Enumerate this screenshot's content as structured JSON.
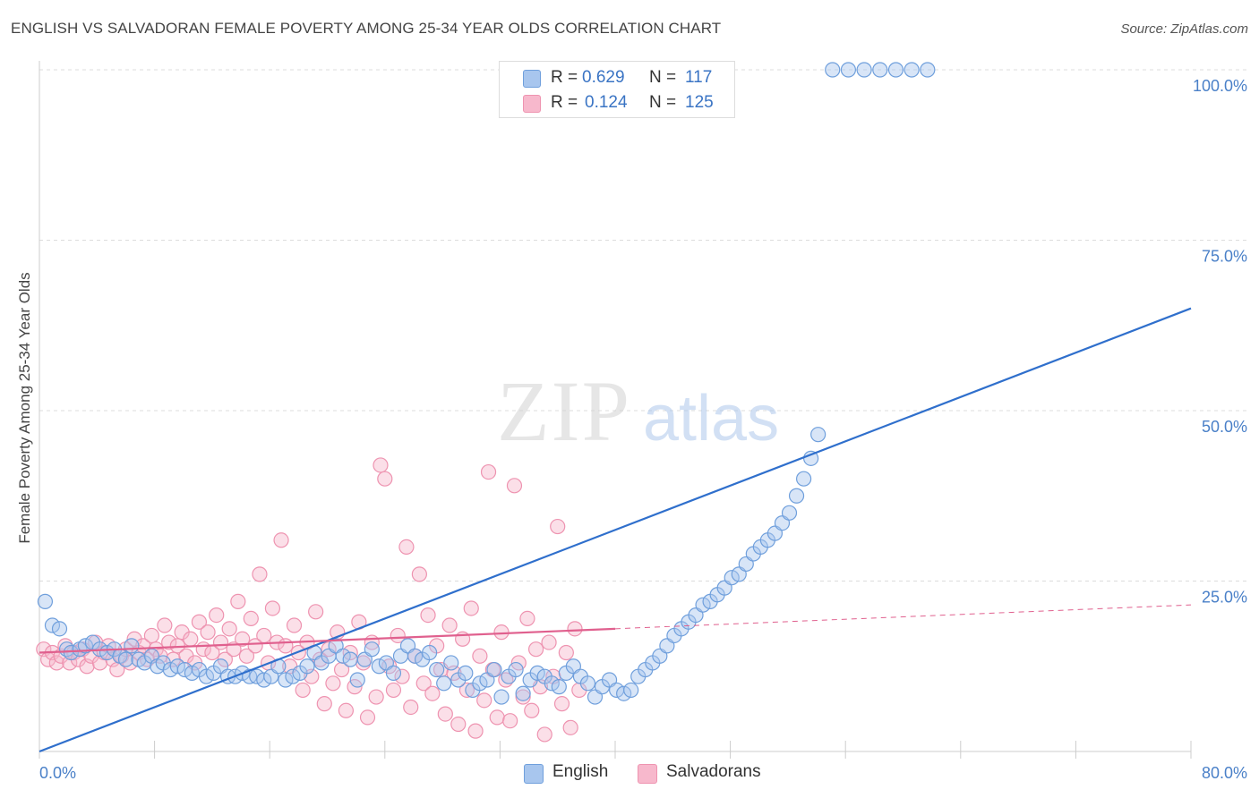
{
  "header": {
    "title": "ENGLISH VS SALVADORAN FEMALE POVERTY AMONG 25-34 YEAR OLDS CORRELATION CHART",
    "source": "Source: ZipAtlas.com"
  },
  "legend_top": {
    "rows": [
      {
        "r_label": "R =",
        "r_value": "0.629",
        "n_label": "N =",
        "n_value": "117"
      },
      {
        "r_label": "R =",
        "r_value": "0.124",
        "n_label": "N =",
        "n_value": "125"
      }
    ]
  },
  "legend_bottom": {
    "english": "English",
    "salvadorans": "Salvadorans"
  },
  "watermark": {
    "zip": "ZIP",
    "atlas": "atlas"
  },
  "colors": {
    "english_fill": "#a8c6ee",
    "english_stroke": "#6f9fdc",
    "english_line": "#2f6fcc",
    "salvadoran_fill": "#f7b8cc",
    "salvadoran_stroke": "#ee93b0",
    "salvadoran_line": "#e0608e",
    "grid": "#dcdcdc",
    "tick_text": "#4a80c8"
  },
  "chart_data": {
    "type": "scatter",
    "title": "ENGLISH VS SALVADORAN FEMALE POVERTY AMONG 25-34 YEAR OLDS CORRELATION CHART",
    "xlabel": "",
    "ylabel": "Female Poverty Among 25-34 Year Olds",
    "xlim": [
      0,
      80
    ],
    "ylim": [
      0,
      100
    ],
    "x_ticks": [
      {
        "value": 0,
        "label": "0.0%"
      },
      {
        "value": 80,
        "label": "80.0%"
      }
    ],
    "y_ticks": [
      {
        "value": 25,
        "label": "25.0%"
      },
      {
        "value": 50,
        "label": "50.0%"
      },
      {
        "value": 75,
        "label": "75.0%"
      },
      {
        "value": 100,
        "label": "100.0%"
      }
    ],
    "grid": true,
    "legend_position": "top-center",
    "series": [
      {
        "name": "English",
        "R": 0.629,
        "N": 117,
        "trend": {
          "x": [
            0,
            80
          ],
          "y": [
            0,
            65
          ]
        },
        "points": [
          [
            0.4,
            22.0
          ],
          [
            0.9,
            18.5
          ],
          [
            1.4,
            18.0
          ],
          [
            1.9,
            15.0
          ],
          [
            2.2,
            14.5
          ],
          [
            2.8,
            15.0
          ],
          [
            3.2,
            15.5
          ],
          [
            3.7,
            16.0
          ],
          [
            4.2,
            15.0
          ],
          [
            4.7,
            14.5
          ],
          [
            5.2,
            15.0
          ],
          [
            5.6,
            14.0
          ],
          [
            6.0,
            13.5
          ],
          [
            6.4,
            15.5
          ],
          [
            6.9,
            13.5
          ],
          [
            7.3,
            13.0
          ],
          [
            7.8,
            14.0
          ],
          [
            8.2,
            12.5
          ],
          [
            8.6,
            13.0
          ],
          [
            9.1,
            12.0
          ],
          [
            9.6,
            12.5
          ],
          [
            10.1,
            12.0
          ],
          [
            10.6,
            11.5
          ],
          [
            11.1,
            12.0
          ],
          [
            11.6,
            11.0
          ],
          [
            12.1,
            11.5
          ],
          [
            12.6,
            12.5
          ],
          [
            13.1,
            11.0
          ],
          [
            13.6,
            11.0
          ],
          [
            14.1,
            11.5
          ],
          [
            14.6,
            11.0
          ],
          [
            15.1,
            11.0
          ],
          [
            15.6,
            10.5
          ],
          [
            16.1,
            11.0
          ],
          [
            16.6,
            12.5
          ],
          [
            17.1,
            10.5
          ],
          [
            17.6,
            11.0
          ],
          [
            18.1,
            11.5
          ],
          [
            18.6,
            12.5
          ],
          [
            19.1,
            14.5
          ],
          [
            19.6,
            13.0
          ],
          [
            20.1,
            14.0
          ],
          [
            20.6,
            15.5
          ],
          [
            21.1,
            14.0
          ],
          [
            21.6,
            13.5
          ],
          [
            22.1,
            10.5
          ],
          [
            22.6,
            13.5
          ],
          [
            23.1,
            15.0
          ],
          [
            23.6,
            12.5
          ],
          [
            24.1,
            13.0
          ],
          [
            24.6,
            11.5
          ],
          [
            25.1,
            14.0
          ],
          [
            25.6,
            15.5
          ],
          [
            26.1,
            14.0
          ],
          [
            26.6,
            13.5
          ],
          [
            27.1,
            14.5
          ],
          [
            27.6,
            12.0
          ],
          [
            28.1,
            10.0
          ],
          [
            28.6,
            13.0
          ],
          [
            29.1,
            10.5
          ],
          [
            29.6,
            11.5
          ],
          [
            30.1,
            9.0
          ],
          [
            30.6,
            10.0
          ],
          [
            31.1,
            10.5
          ],
          [
            31.6,
            12.0
          ],
          [
            32.1,
            8.0
          ],
          [
            32.6,
            11.0
          ],
          [
            33.1,
            12.0
          ],
          [
            33.6,
            8.5
          ],
          [
            34.1,
            10.5
          ],
          [
            34.6,
            11.5
          ],
          [
            35.1,
            11.0
          ],
          [
            35.6,
            10.0
          ],
          [
            36.1,
            9.5
          ],
          [
            36.6,
            11.5
          ],
          [
            37.1,
            12.5
          ],
          [
            37.6,
            11.0
          ],
          [
            38.1,
            10.0
          ],
          [
            38.6,
            8.0
          ],
          [
            39.1,
            9.5
          ],
          [
            39.6,
            10.5
          ],
          [
            40.1,
            9.0
          ],
          [
            40.6,
            8.5
          ],
          [
            41.1,
            9.0
          ],
          [
            41.6,
            11.0
          ],
          [
            42.1,
            12.0
          ],
          [
            42.6,
            13.0
          ],
          [
            43.1,
            14.0
          ],
          [
            43.6,
            15.5
          ],
          [
            44.1,
            17.0
          ],
          [
            44.6,
            18.0
          ],
          [
            45.1,
            19.0
          ],
          [
            45.6,
            20.0
          ],
          [
            46.1,
            21.5
          ],
          [
            46.6,
            22.0
          ],
          [
            47.1,
            23.0
          ],
          [
            47.6,
            24.0
          ],
          [
            48.1,
            25.5
          ],
          [
            48.6,
            26.0
          ],
          [
            49.1,
            27.5
          ],
          [
            49.6,
            29.0
          ],
          [
            50.1,
            30.0
          ],
          [
            50.6,
            31.0
          ],
          [
            51.1,
            32.0
          ],
          [
            51.6,
            33.5
          ],
          [
            52.1,
            35.0
          ],
          [
            52.6,
            37.5
          ],
          [
            53.1,
            40.0
          ],
          [
            53.6,
            43.0
          ],
          [
            54.1,
            46.5
          ],
          [
            55.1,
            100
          ],
          [
            56.2,
            100
          ],
          [
            57.3,
            100
          ],
          [
            58.4,
            100
          ],
          [
            59.5,
            100
          ],
          [
            60.6,
            100
          ],
          [
            61.7,
            100
          ]
        ]
      },
      {
        "name": "Salvadorans",
        "R": 0.124,
        "N": 125,
        "trend": {
          "x": [
            0,
            40
          ],
          "y": [
            14.5,
            18.0
          ]
        },
        "trend_extension": {
          "x": [
            40,
            80
          ],
          "y": [
            18.0,
            21.5
          ]
        },
        "points": [
          [
            0.3,
            15.0
          ],
          [
            0.6,
            13.5
          ],
          [
            0.9,
            14.5
          ],
          [
            1.2,
            13.0
          ],
          [
            1.5,
            14.0
          ],
          [
            1.8,
            15.5
          ],
          [
            2.1,
            13.0
          ],
          [
            2.4,
            14.5
          ],
          [
            2.7,
            13.5
          ],
          [
            3.0,
            15.0
          ],
          [
            3.3,
            12.5
          ],
          [
            3.6,
            14.0
          ],
          [
            3.9,
            16.0
          ],
          [
            4.2,
            13.0
          ],
          [
            4.5,
            14.5
          ],
          [
            4.8,
            15.5
          ],
          [
            5.1,
            13.5
          ],
          [
            5.4,
            12.0
          ],
          [
            5.7,
            14.0
          ],
          [
            6.0,
            15.0
          ],
          [
            6.3,
            13.0
          ],
          [
            6.6,
            16.5
          ],
          [
            6.9,
            14.5
          ],
          [
            7.2,
            15.5
          ],
          [
            7.5,
            13.5
          ],
          [
            7.8,
            17.0
          ],
          [
            8.1,
            15.0
          ],
          [
            8.4,
            14.0
          ],
          [
            8.7,
            18.5
          ],
          [
            9.0,
            16.0
          ],
          [
            9.3,
            13.5
          ],
          [
            9.6,
            15.5
          ],
          [
            9.9,
            17.5
          ],
          [
            10.2,
            14.0
          ],
          [
            10.5,
            16.5
          ],
          [
            10.8,
            13.0
          ],
          [
            11.1,
            19.0
          ],
          [
            11.4,
            15.0
          ],
          [
            11.7,
            17.5
          ],
          [
            12.0,
            14.5
          ],
          [
            12.3,
            20.0
          ],
          [
            12.6,
            16.0
          ],
          [
            12.9,
            13.5
          ],
          [
            13.2,
            18.0
          ],
          [
            13.5,
            15.0
          ],
          [
            13.8,
            22.0
          ],
          [
            14.1,
            16.5
          ],
          [
            14.4,
            14.0
          ],
          [
            14.7,
            19.5
          ],
          [
            15.0,
            15.5
          ],
          [
            15.3,
            26.0
          ],
          [
            15.6,
            17.0
          ],
          [
            15.9,
            13.0
          ],
          [
            16.2,
            21.0
          ],
          [
            16.5,
            16.0
          ],
          [
            16.8,
            31.0
          ],
          [
            17.1,
            15.5
          ],
          [
            17.4,
            12.5
          ],
          [
            17.7,
            18.5
          ],
          [
            18.0,
            14.5
          ],
          [
            18.3,
            9.0
          ],
          [
            18.6,
            16.0
          ],
          [
            18.9,
            11.0
          ],
          [
            19.2,
            20.5
          ],
          [
            19.5,
            13.5
          ],
          [
            19.8,
            7.0
          ],
          [
            20.1,
            15.0
          ],
          [
            20.4,
            10.0
          ],
          [
            20.7,
            17.5
          ],
          [
            21.0,
            12.0
          ],
          [
            21.3,
            6.0
          ],
          [
            21.6,
            14.5
          ],
          [
            21.9,
            9.5
          ],
          [
            22.2,
            19.0
          ],
          [
            22.5,
            13.0
          ],
          [
            22.8,
            5.0
          ],
          [
            23.1,
            16.0
          ],
          [
            23.4,
            8.0
          ],
          [
            23.7,
            42.0
          ],
          [
            24.0,
            40.0
          ],
          [
            24.3,
            12.5
          ],
          [
            24.6,
            9.0
          ],
          [
            24.9,
            17.0
          ],
          [
            25.2,
            11.0
          ],
          [
            25.5,
            30.0
          ],
          [
            25.8,
            6.5
          ],
          [
            26.1,
            14.0
          ],
          [
            26.4,
            26.0
          ],
          [
            26.7,
            10.0
          ],
          [
            27.0,
            20.0
          ],
          [
            27.3,
            8.5
          ],
          [
            27.6,
            15.5
          ],
          [
            27.9,
            12.0
          ],
          [
            28.2,
            5.5
          ],
          [
            28.5,
            18.5
          ],
          [
            28.8,
            11.5
          ],
          [
            29.1,
            4.0
          ],
          [
            29.4,
            16.5
          ],
          [
            29.7,
            9.0
          ],
          [
            30.0,
            21.0
          ],
          [
            30.3,
            3.0
          ],
          [
            30.6,
            14.0
          ],
          [
            30.9,
            7.5
          ],
          [
            31.2,
            41.0
          ],
          [
            31.5,
            12.0
          ],
          [
            31.8,
            5.0
          ],
          [
            32.1,
            17.5
          ],
          [
            32.4,
            10.5
          ],
          [
            32.7,
            4.5
          ],
          [
            33.0,
            39.0
          ],
          [
            33.3,
            13.0
          ],
          [
            33.6,
            8.0
          ],
          [
            33.9,
            19.5
          ],
          [
            34.2,
            6.0
          ],
          [
            34.5,
            15.0
          ],
          [
            34.8,
            9.5
          ],
          [
            35.1,
            2.5
          ],
          [
            35.4,
            16.0
          ],
          [
            35.7,
            11.0
          ],
          [
            36.0,
            33.0
          ],
          [
            36.3,
            7.0
          ],
          [
            36.6,
            14.5
          ],
          [
            36.9,
            3.5
          ],
          [
            37.2,
            18.0
          ],
          [
            37.5,
            9.0
          ]
        ]
      }
    ]
  }
}
